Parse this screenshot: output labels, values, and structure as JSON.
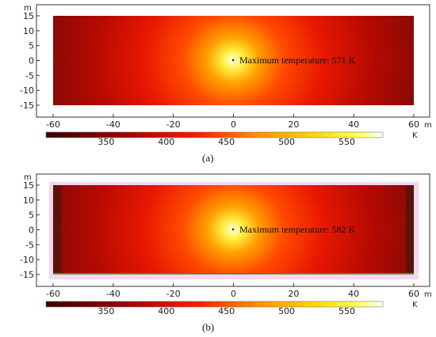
{
  "colors": {
    "hot_core": "#ffffd0",
    "mid": "#ff2a00",
    "cool": "#7a0a0a",
    "frame": "#333333"
  },
  "chart_data": [
    {
      "type": "heatmap",
      "panel_label": "(a)",
      "x_unit": "m",
      "y_unit": "m",
      "xlim": [
        -60,
        60
      ],
      "ylim": [
        -15,
        15
      ],
      "x_ticks": [
        "-60",
        "-40",
        "-20",
        "0",
        "20",
        "40",
        "60"
      ],
      "y_ticks": [
        "15",
        "10",
        "5",
        "0",
        "-5",
        "-10",
        "-15"
      ],
      "colorbar_unit": "K",
      "colorbar_ticks": [
        "350",
        "400",
        "450",
        "500",
        "550"
      ],
      "colorbar_range": [
        300,
        580
      ],
      "hotspot": [
        0,
        0
      ],
      "annotation": "Maximum temperature: 571 K"
    },
    {
      "type": "heatmap",
      "panel_label": "(b)",
      "x_unit": "m",
      "y_unit": "m",
      "xlim": [
        -60,
        60
      ],
      "ylim": [
        -15,
        15
      ],
      "x_ticks": [
        "-60",
        "-40",
        "-20",
        "0",
        "20",
        "40",
        "60"
      ],
      "y_ticks": [
        "15",
        "10",
        "5",
        "0",
        "-5",
        "-10",
        "-15"
      ],
      "colorbar_unit": "K",
      "colorbar_ticks": [
        "350",
        "400",
        "450",
        "500",
        "550"
      ],
      "colorbar_range": [
        300,
        580
      ],
      "hotspot": [
        0,
        0
      ],
      "annotation": "Maximum temperature: 582 K"
    }
  ]
}
